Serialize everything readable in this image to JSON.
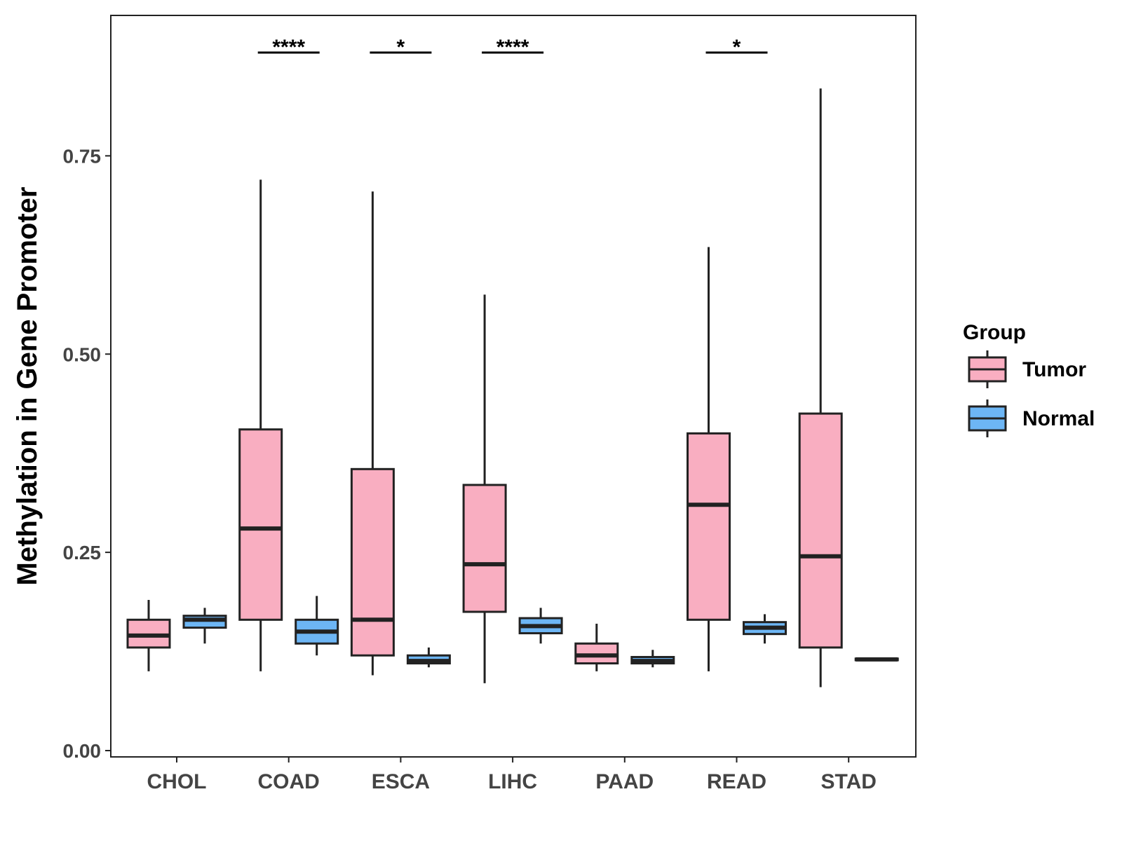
{
  "chart_data": {
    "type": "boxplot",
    "ylabel": "Methylation in Gene Promoter",
    "xlabel": "",
    "ylim": [
      0,
      0.94
    ],
    "yticks": [
      0.0,
      0.25,
      0.5,
      0.75
    ],
    "ytick_labels": [
      "0.00",
      "0.25",
      "0.50",
      "0.75"
    ],
    "grid": false,
    "legend_position": "right",
    "legend": {
      "title": "Group",
      "entries": [
        {
          "name": "Tumor",
          "color": "#f9aec1"
        },
        {
          "name": "Normal",
          "color": "#6db6f5"
        }
      ]
    },
    "categories": [
      "CHOL",
      "COAD",
      "ESCA",
      "LIHC",
      "PAAD",
      "READ",
      "STAD"
    ],
    "series": [
      {
        "name": "Tumor",
        "color": "#f9aec1",
        "boxes": [
          {
            "min": 0.1,
            "q1": 0.13,
            "median": 0.145,
            "q3": 0.165,
            "max": 0.19
          },
          {
            "min": 0.1,
            "q1": 0.165,
            "median": 0.28,
            "q3": 0.405,
            "max": 0.72
          },
          {
            "min": 0.095,
            "q1": 0.12,
            "median": 0.165,
            "q3": 0.355,
            "max": 0.705
          },
          {
            "min": 0.085,
            "q1": 0.175,
            "median": 0.235,
            "q3": 0.335,
            "max": 0.575
          },
          {
            "min": 0.1,
            "q1": 0.11,
            "median": 0.12,
            "q3": 0.135,
            "max": 0.16
          },
          {
            "min": 0.1,
            "q1": 0.165,
            "median": 0.31,
            "q3": 0.4,
            "max": 0.635
          },
          {
            "min": 0.08,
            "q1": 0.13,
            "median": 0.245,
            "q3": 0.425,
            "max": 0.835
          }
        ]
      },
      {
        "name": "Normal",
        "color": "#6db6f5",
        "boxes": [
          {
            "min": 0.135,
            "q1": 0.155,
            "median": 0.165,
            "q3": 0.17,
            "max": 0.18
          },
          {
            "min": 0.12,
            "q1": 0.135,
            "median": 0.15,
            "q3": 0.165,
            "max": 0.195
          },
          {
            "min": 0.105,
            "q1": 0.11,
            "median": 0.113,
            "q3": 0.12,
            "max": 0.13
          },
          {
            "min": 0.135,
            "q1": 0.148,
            "median": 0.157,
            "q3": 0.167,
            "max": 0.18
          },
          {
            "min": 0.105,
            "q1": 0.11,
            "median": 0.113,
            "q3": 0.118,
            "max": 0.127
          },
          {
            "min": 0.135,
            "q1": 0.147,
            "median": 0.155,
            "q3": 0.162,
            "max": 0.172
          },
          {
            "min": 0.113,
            "q1": 0.114,
            "median": 0.115,
            "q3": 0.116,
            "max": 0.117
          }
        ]
      }
    ],
    "significance": [
      {
        "category": "COAD",
        "label": "****",
        "y": 0.88
      },
      {
        "category": "ESCA",
        "label": "*",
        "y": 0.88
      },
      {
        "category": "LIHC",
        "label": "****",
        "y": 0.88
      },
      {
        "category": "READ",
        "label": "*",
        "y": 0.88
      }
    ]
  }
}
